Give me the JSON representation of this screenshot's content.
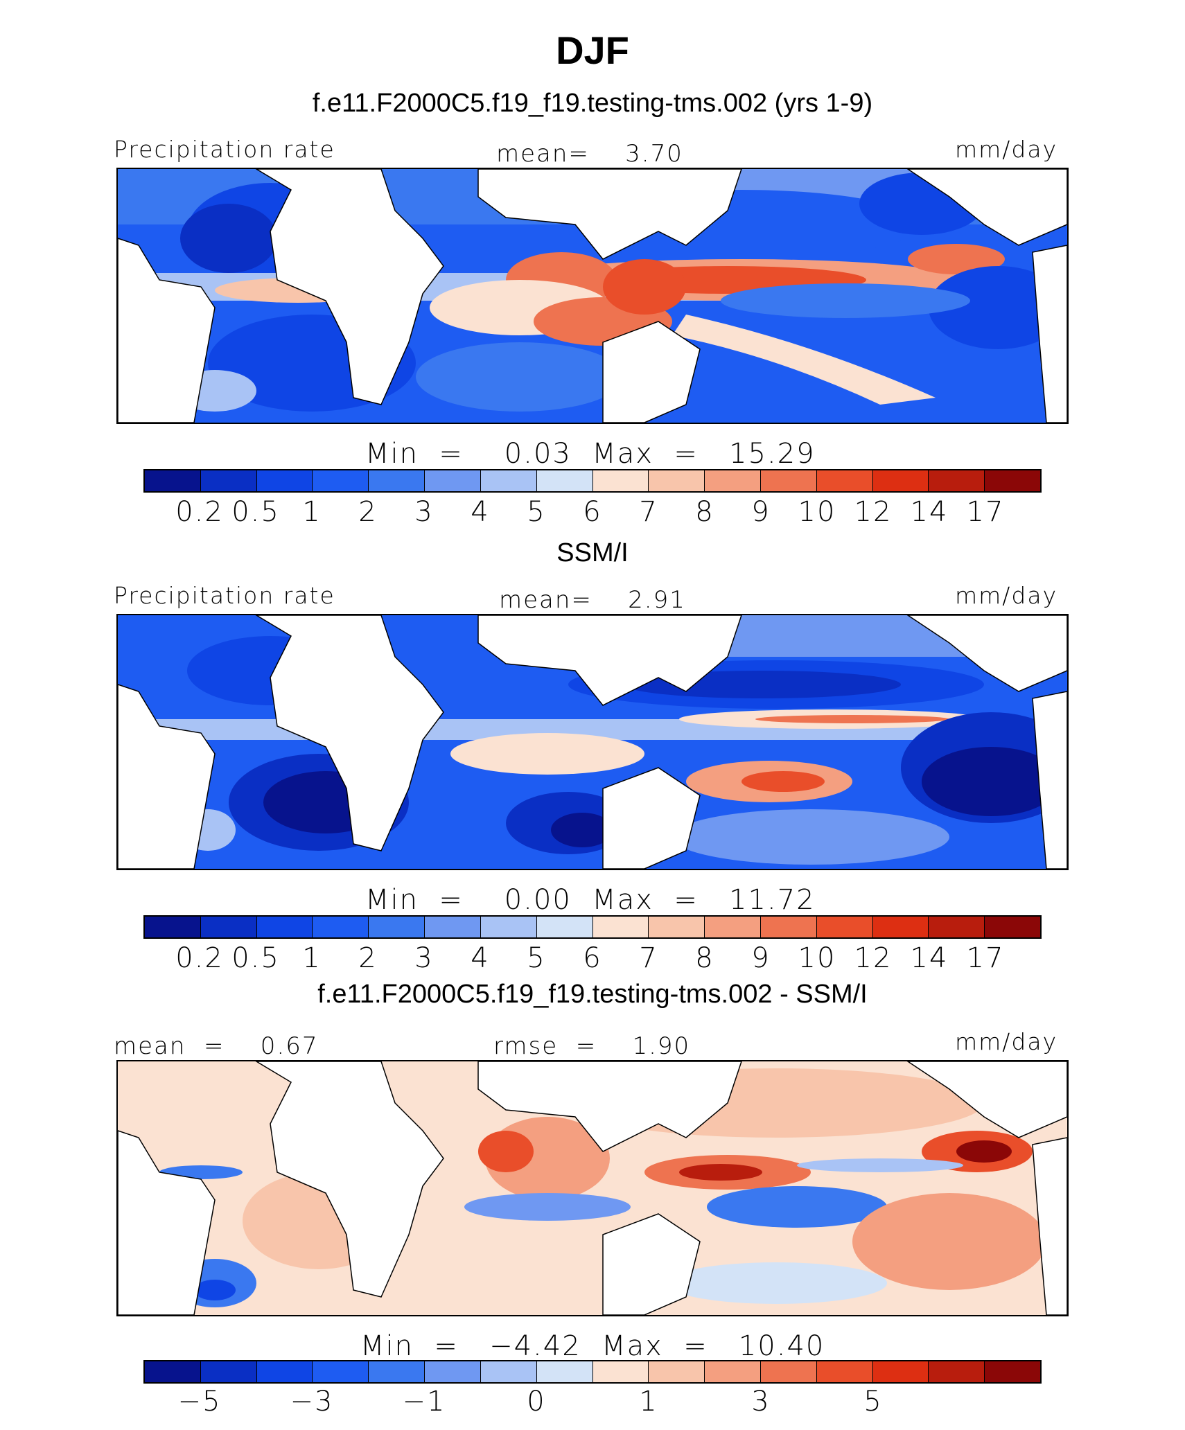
{
  "season": "DJF",
  "panels": [
    {
      "title": "f.e11.F2000C5.f19_f19.testing-tms.002 (yrs 1-9)",
      "variable": "Precipitation rate",
      "stat_center": "mean=    3.70",
      "units": "mm/day",
      "minmax": "Min  =    0.03  Max  =   15.29",
      "colorbar": {
        "colors": [
          "#07138d",
          "#0a2fc4",
          "#0f45e5",
          "#1e5cf2",
          "#3a78f0",
          "#6f98f2",
          "#a9c3f5",
          "#d3e3f7",
          "#fbe2d2",
          "#f8c5ab",
          "#f49f80",
          "#ee7350",
          "#e94e2a",
          "#dd2f12",
          "#b81d0d",
          "#8b0707"
        ],
        "ticks": [
          "0.2",
          "0.5",
          "1",
          "2",
          "3",
          "4",
          "5",
          "6",
          "7",
          "8",
          "9",
          "10",
          "12",
          "14",
          "17"
        ]
      }
    },
    {
      "title": "SSM/I",
      "variable": "Precipitation rate",
      "stat_center": "mean=    2.91",
      "units": "mm/day",
      "minmax": "Min  =    0.00  Max  =   11.72",
      "colorbar": {
        "colors": [
          "#07138d",
          "#0a2fc4",
          "#0f45e5",
          "#1e5cf2",
          "#3a78f0",
          "#6f98f2",
          "#a9c3f5",
          "#d3e3f7",
          "#fbe2d2",
          "#f8c5ab",
          "#f49f80",
          "#ee7350",
          "#e94e2a",
          "#dd2f12",
          "#b81d0d",
          "#8b0707"
        ],
        "ticks": [
          "0.2",
          "0.5",
          "1",
          "2",
          "3",
          "4",
          "5",
          "6",
          "7",
          "8",
          "9",
          "10",
          "12",
          "14",
          "17"
        ]
      }
    },
    {
      "title": "f.e11.F2000C5.f19_f19.testing-tms.002 - SSM/I",
      "stat_left": "mean  =    0.67",
      "stat_center": "rmse  =    1.90",
      "units": "mm/day",
      "minmax": "Min  =   −4.42  Max  =   10.40",
      "colorbar": {
        "colors": [
          "#07138d",
          "#0a2fc4",
          "#0f45e5",
          "#1e5cf2",
          "#3a78f0",
          "#6f98f2",
          "#a9c3f5",
          "#d3e3f7",
          "#fbe2d2",
          "#f8c5ab",
          "#f49f80",
          "#ee7350",
          "#e94e2a",
          "#dd2f12",
          "#b81d0d",
          "#8b0707"
        ],
        "ticks": [
          "−5",
          "−3",
          "−1",
          "0",
          "1",
          "3",
          "5"
        ]
      }
    }
  ]
}
